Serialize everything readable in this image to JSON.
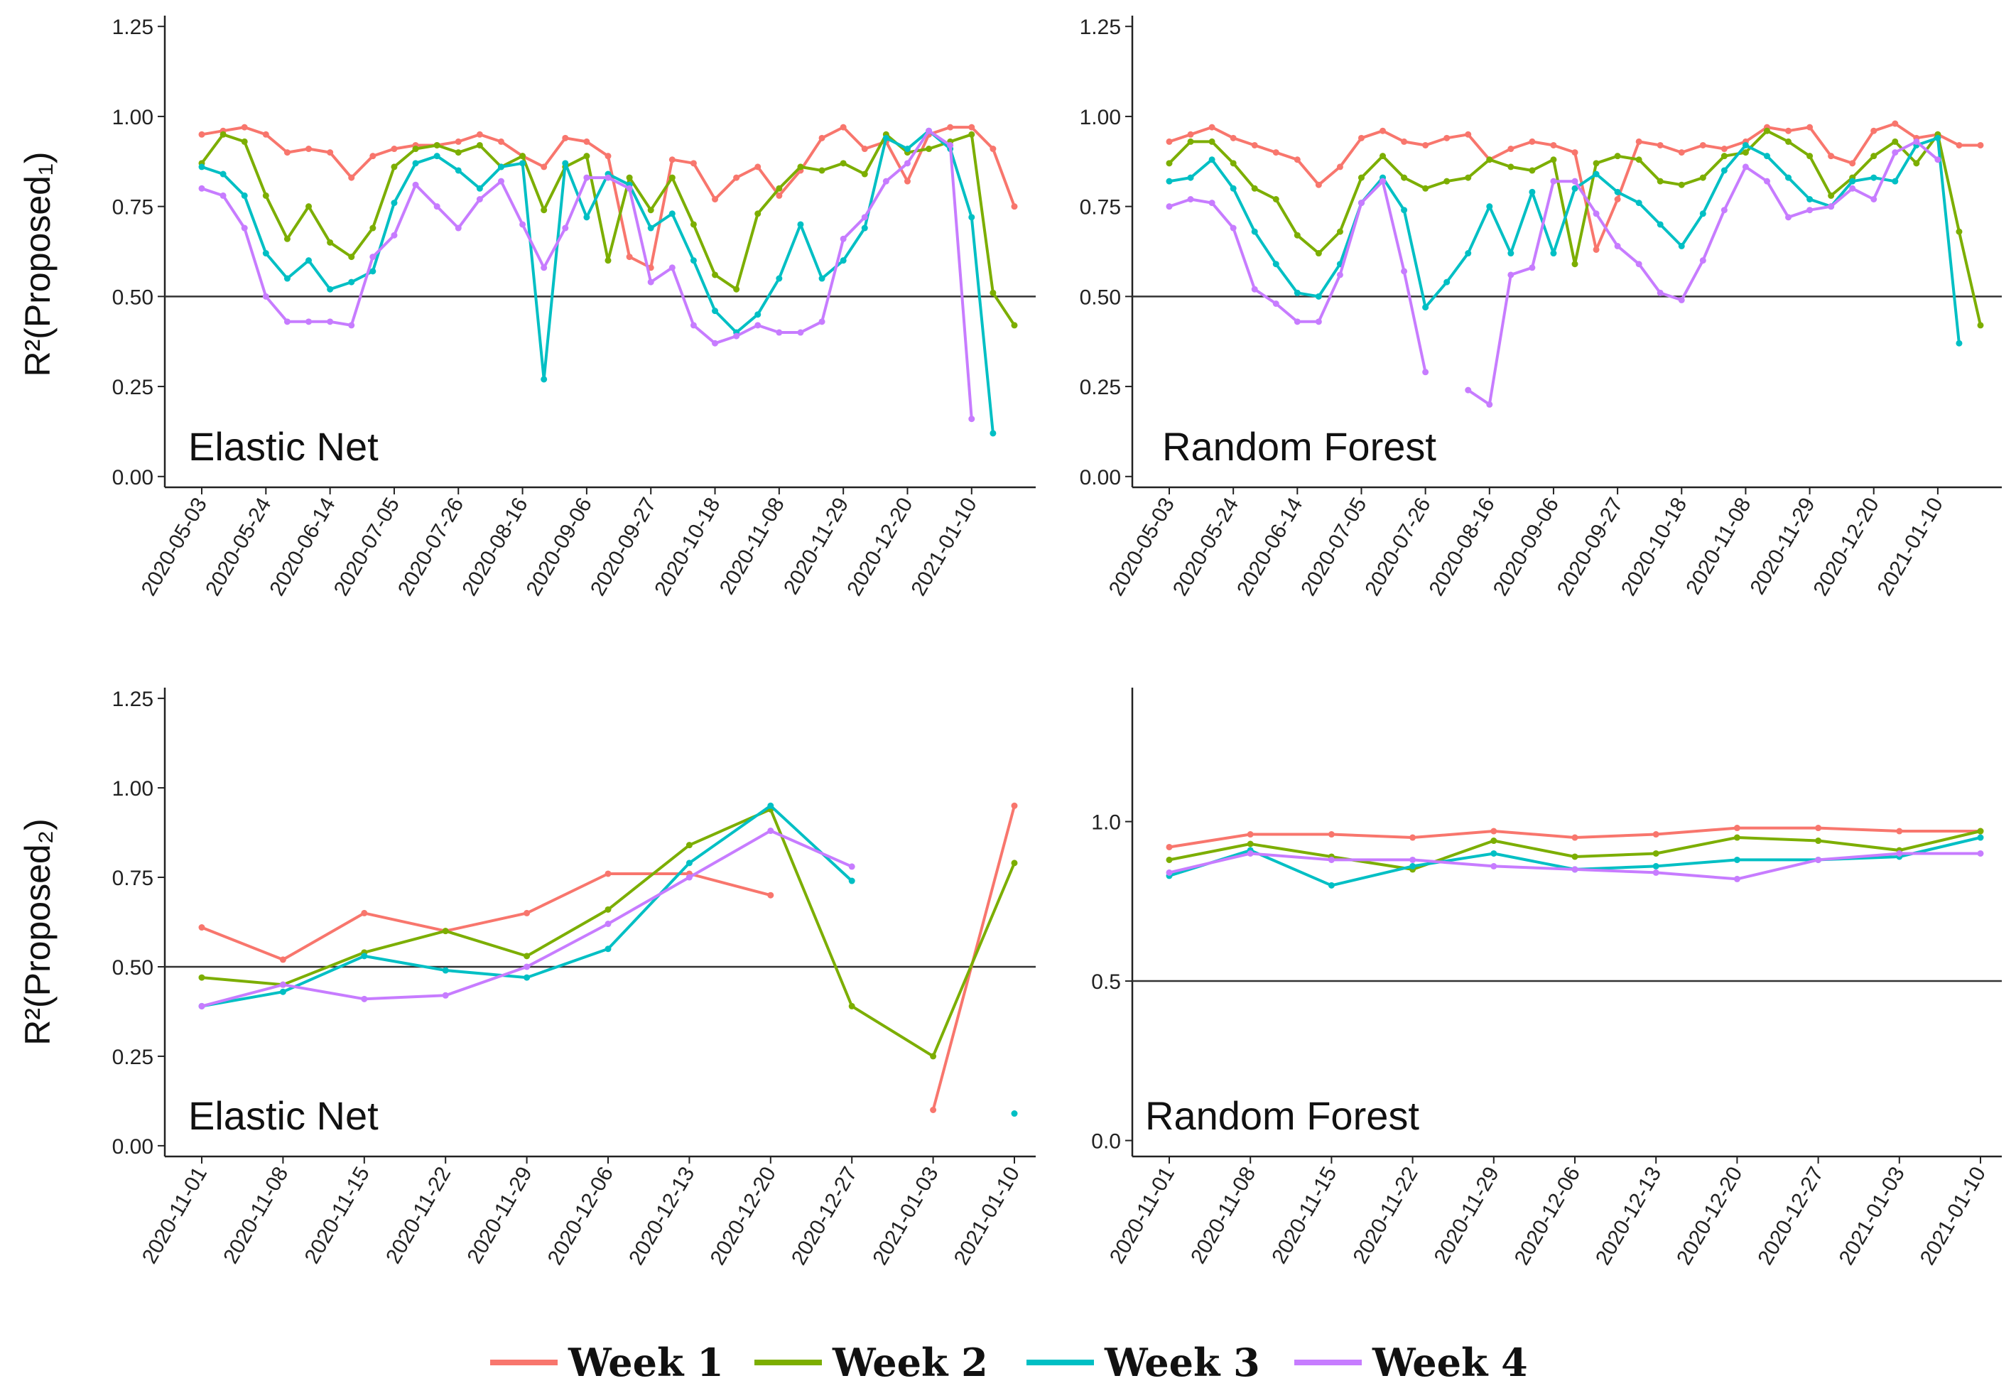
{
  "chart_data": [
    {
      "type": "line",
      "panel_label": "Elastic Net",
      "ylabel": "R²(Proposed₁)",
      "ylim": [
        -0.03,
        1.28
      ],
      "yticks": [
        "0.00",
        "0.25",
        "0.50",
        "0.75",
        "1.00",
        "1.25"
      ],
      "reference_line": 0.5,
      "x": [
        "2020-05-03",
        "2020-05-10",
        "2020-05-17",
        "2020-05-24",
        "2020-05-31",
        "2020-06-07",
        "2020-06-14",
        "2020-06-21",
        "2020-06-28",
        "2020-07-05",
        "2020-07-12",
        "2020-07-19",
        "2020-07-26",
        "2020-08-02",
        "2020-08-09",
        "2020-08-16",
        "2020-08-23",
        "2020-08-30",
        "2020-09-06",
        "2020-09-13",
        "2020-09-20",
        "2020-09-27",
        "2020-10-04",
        "2020-10-11",
        "2020-10-18",
        "2020-10-25",
        "2020-11-01",
        "2020-11-08",
        "2020-11-15",
        "2020-11-22",
        "2020-11-29",
        "2020-12-06",
        "2020-12-13",
        "2020-12-20",
        "2020-12-27",
        "2021-01-03",
        "2021-01-10",
        "2021-01-17",
        "2021-01-24"
      ],
      "xtick_labels": [
        "2020-05-03",
        "2020-05-24",
        "2020-06-14",
        "2020-07-05",
        "2020-07-26",
        "2020-08-16",
        "2020-09-06",
        "2020-09-27",
        "2020-10-18",
        "2020-11-08",
        "2020-11-29",
        "2020-12-20",
        "2021-01-10"
      ],
      "series": [
        {
          "name": "Week 1",
          "color": "#F8766D",
          "values": [
            0.95,
            0.96,
            0.97,
            0.95,
            0.9,
            0.91,
            0.9,
            0.83,
            0.89,
            0.91,
            0.92,
            0.92,
            0.93,
            0.95,
            0.93,
            0.89,
            0.86,
            0.94,
            0.93,
            0.89,
            0.61,
            0.58,
            0.88,
            0.87,
            0.77,
            0.83,
            0.86,
            0.78,
            0.85,
            0.94,
            0.97,
            0.91,
            0.93,
            0.82,
            0.95,
            0.97,
            0.97,
            0.91,
            0.75
          ]
        },
        {
          "name": "Week 2",
          "color": "#7CAE00",
          "values": [
            0.87,
            0.95,
            0.93,
            0.78,
            0.66,
            0.75,
            0.65,
            0.61,
            0.69,
            0.86,
            0.91,
            0.92,
            0.9,
            0.92,
            0.86,
            0.89,
            0.74,
            0.86,
            0.89,
            0.6,
            0.83,
            0.74,
            0.83,
            0.7,
            0.56,
            0.52,
            0.73,
            0.8,
            0.86,
            0.85,
            0.87,
            0.84,
            0.95,
            0.9,
            0.91,
            0.93,
            0.95,
            0.51,
            0.42
          ]
        },
        {
          "name": "Week 3",
          "color": "#00BFC4",
          "values": [
            0.86,
            0.84,
            0.78,
            0.62,
            0.55,
            0.6,
            0.52,
            0.54,
            0.57,
            0.76,
            0.87,
            0.89,
            0.85,
            0.8,
            0.86,
            0.87,
            0.27,
            0.87,
            0.72,
            0.84,
            0.81,
            0.69,
            0.73,
            0.6,
            0.46,
            0.4,
            0.45,
            0.55,
            0.7,
            0.55,
            0.6,
            0.69,
            0.94,
            0.91,
            0.96,
            0.91,
            0.72,
            0.12,
            null
          ]
        },
        {
          "name": "Week 4",
          "color": "#C77CFF",
          "values": [
            0.8,
            0.78,
            0.69,
            0.5,
            0.43,
            0.43,
            0.43,
            0.42,
            0.61,
            0.67,
            0.81,
            0.75,
            0.69,
            0.77,
            0.82,
            0.7,
            0.58,
            0.69,
            0.83,
            0.83,
            0.8,
            0.54,
            0.58,
            0.42,
            0.37,
            0.39,
            0.42,
            0.4,
            0.4,
            0.43,
            0.66,
            0.72,
            0.82,
            0.87,
            0.96,
            0.92,
            0.16,
            null,
            null
          ]
        }
      ]
    },
    {
      "type": "line",
      "panel_label": "Random Forest",
      "ylabel": "",
      "ylim": [
        -0.03,
        1.28
      ],
      "yticks": [
        "0.00",
        "0.25",
        "0.50",
        "0.75",
        "1.00",
        "1.25"
      ],
      "reference_line": 0.5,
      "x": [
        "2020-05-03",
        "2020-05-10",
        "2020-05-17",
        "2020-05-24",
        "2020-05-31",
        "2020-06-07",
        "2020-06-14",
        "2020-06-21",
        "2020-06-28",
        "2020-07-05",
        "2020-07-12",
        "2020-07-19",
        "2020-07-26",
        "2020-08-02",
        "2020-08-09",
        "2020-08-16",
        "2020-08-23",
        "2020-08-30",
        "2020-09-06",
        "2020-09-13",
        "2020-09-20",
        "2020-09-27",
        "2020-10-04",
        "2020-10-11",
        "2020-10-18",
        "2020-10-25",
        "2020-11-01",
        "2020-11-08",
        "2020-11-15",
        "2020-11-22",
        "2020-11-29",
        "2020-12-06",
        "2020-12-13",
        "2020-12-20",
        "2020-12-27",
        "2021-01-03",
        "2021-01-10",
        "2021-01-17",
        "2021-01-24"
      ],
      "xtick_labels": [
        "2020-05-03",
        "2020-05-24",
        "2020-06-14",
        "2020-07-05",
        "2020-07-26",
        "2020-08-16",
        "2020-09-06",
        "2020-09-27",
        "2020-10-18",
        "2020-11-08",
        "2020-11-29",
        "2020-12-20",
        "2021-01-10"
      ],
      "series": [
        {
          "name": "Week 1",
          "color": "#F8766D",
          "values": [
            0.93,
            0.95,
            0.97,
            0.94,
            0.92,
            0.9,
            0.88,
            0.81,
            0.86,
            0.94,
            0.96,
            0.93,
            0.92,
            0.94,
            0.95,
            0.88,
            0.91,
            0.93,
            0.92,
            0.9,
            0.63,
            0.77,
            0.93,
            0.92,
            0.9,
            0.92,
            0.91,
            0.93,
            0.97,
            0.96,
            0.97,
            0.89,
            0.87,
            0.96,
            0.98,
            0.94,
            0.95,
            0.92,
            0.92
          ]
        },
        {
          "name": "Week 2",
          "color": "#7CAE00",
          "values": [
            0.87,
            0.93,
            0.93,
            0.87,
            0.8,
            0.77,
            0.67,
            0.62,
            0.68,
            0.83,
            0.89,
            0.83,
            0.8,
            0.82,
            0.83,
            0.88,
            0.86,
            0.85,
            0.88,
            0.59,
            0.87,
            0.89,
            0.88,
            0.82,
            0.81,
            0.83,
            0.89,
            0.9,
            0.96,
            0.93,
            0.89,
            0.78,
            0.83,
            0.89,
            0.93,
            0.87,
            0.95,
            0.68,
            0.42
          ]
        },
        {
          "name": "Week 3",
          "color": "#00BFC4",
          "values": [
            0.82,
            0.83,
            0.88,
            0.8,
            0.68,
            0.59,
            0.51,
            0.5,
            0.59,
            0.76,
            0.83,
            0.74,
            0.47,
            0.54,
            0.62,
            0.75,
            0.62,
            0.79,
            0.62,
            0.8,
            0.84,
            0.79,
            0.76,
            0.7,
            0.64,
            0.73,
            0.85,
            0.92,
            0.89,
            0.83,
            0.77,
            0.75,
            0.82,
            0.83,
            0.82,
            0.92,
            0.94,
            0.37,
            null
          ]
        },
        {
          "name": "Week 4",
          "color": "#C77CFF",
          "values": [
            0.75,
            0.77,
            0.76,
            0.69,
            0.52,
            0.48,
            0.43,
            0.43,
            0.56,
            0.76,
            0.82,
            0.57,
            0.29,
            null,
            0.24,
            0.2,
            0.56,
            0.58,
            0.82,
            0.82,
            0.73,
            0.64,
            0.59,
            0.51,
            0.49,
            0.6,
            0.74,
            0.86,
            0.82,
            0.72,
            0.74,
            0.75,
            0.8,
            0.77,
            0.9,
            0.93,
            0.88,
            null,
            null
          ]
        }
      ]
    },
    {
      "type": "line",
      "panel_label": "Elastic Net",
      "ylabel": "R²(Proposed₂)",
      "ylim": [
        -0.03,
        1.28
      ],
      "yticks": [
        "0.00",
        "0.25",
        "0.50",
        "0.75",
        "1.00",
        "1.25"
      ],
      "reference_line": 0.5,
      "x": [
        "2020-11-01",
        "2020-11-08",
        "2020-11-15",
        "2020-11-22",
        "2020-11-29",
        "2020-12-06",
        "2020-12-13",
        "2020-12-20",
        "2020-12-27",
        "2021-01-03",
        "2021-01-10"
      ],
      "xtick_labels": [
        "2020-11-01",
        "2020-11-08",
        "2020-11-15",
        "2020-11-22",
        "2020-11-29",
        "2020-12-06",
        "2020-12-13",
        "2020-12-20",
        "2020-12-27",
        "2021-01-03",
        "2021-01-10"
      ],
      "series": [
        {
          "name": "Week 1",
          "color": "#F8766D",
          "values": [
            0.61,
            0.52,
            0.65,
            0.6,
            0.65,
            0.76,
            0.76,
            0.7,
            null,
            0.1,
            0.95
          ]
        },
        {
          "name": "Week 2",
          "color": "#7CAE00",
          "values": [
            0.47,
            0.45,
            0.54,
            0.6,
            0.53,
            0.66,
            0.84,
            0.94,
            0.39,
            0.25,
            0.79
          ]
        },
        {
          "name": "Week 3",
          "color": "#00BFC4",
          "values": [
            0.39,
            0.43,
            0.53,
            0.49,
            0.47,
            0.55,
            0.79,
            0.95,
            0.74,
            null,
            0.09
          ]
        },
        {
          "name": "Week 4",
          "color": "#C77CFF",
          "values": [
            0.39,
            0.45,
            0.41,
            0.42,
            0.5,
            0.62,
            0.75,
            0.88,
            0.78,
            null,
            null
          ]
        }
      ]
    },
    {
      "type": "line",
      "panel_label": "Random Forest",
      "ylabel": "",
      "ylim": [
        -0.05,
        1.42
      ],
      "yticks": [
        "0.0",
        "0.5",
        "1.0"
      ],
      "reference_line": 0.5,
      "x": [
        "2020-11-01",
        "2020-11-08",
        "2020-11-15",
        "2020-11-22",
        "2020-11-29",
        "2020-12-06",
        "2020-12-13",
        "2020-12-20",
        "2020-12-27",
        "2021-01-03",
        "2021-01-10"
      ],
      "xtick_labels": [
        "2020-11-01",
        "2020-11-08",
        "2020-11-15",
        "2020-11-22",
        "2020-11-29",
        "2020-12-06",
        "2020-12-13",
        "2020-12-20",
        "2020-12-27",
        "2021-01-03",
        "2021-01-10"
      ],
      "series": [
        {
          "name": "Week 1",
          "color": "#F8766D",
          "values": [
            0.92,
            0.96,
            0.96,
            0.95,
            0.97,
            0.95,
            0.96,
            0.98,
            0.98,
            0.97,
            0.97
          ]
        },
        {
          "name": "Week 2",
          "color": "#7CAE00",
          "values": [
            0.88,
            0.93,
            0.89,
            0.85,
            0.94,
            0.89,
            0.9,
            0.95,
            0.94,
            0.91,
            0.97
          ]
        },
        {
          "name": "Week 3",
          "color": "#00BFC4",
          "values": [
            0.83,
            0.91,
            0.8,
            0.86,
            0.9,
            0.85,
            0.86,
            0.88,
            0.88,
            0.89,
            0.95
          ]
        },
        {
          "name": "Week 4",
          "color": "#C77CFF",
          "values": [
            0.84,
            0.9,
            0.88,
            0.88,
            0.86,
            0.85,
            0.84,
            0.82,
            0.88,
            0.9,
            0.9
          ]
        }
      ]
    }
  ],
  "legend": {
    "position": "bottom",
    "items": [
      {
        "label": "Week 1",
        "color": "#F8766D"
      },
      {
        "label": "Week 2",
        "color": "#7CAE00"
      },
      {
        "label": "Week 3",
        "color": "#00BFC4"
      },
      {
        "label": "Week 4",
        "color": "#C77CFF"
      }
    ]
  }
}
